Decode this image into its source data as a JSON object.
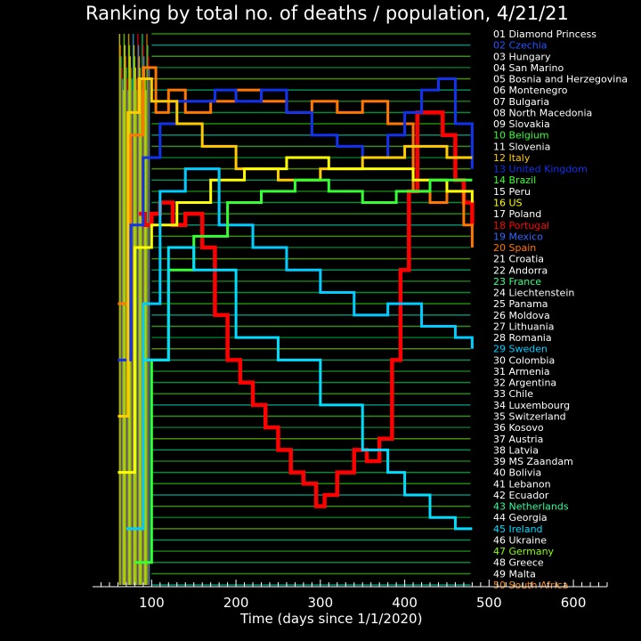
{
  "chart_data": {
    "type": "line",
    "title": "Ranking by total no. of deaths / population, 4/21/21",
    "xlabel": "Time (days since 1/1/2020)",
    "ylabel": "",
    "xlim": [
      30,
      640
    ],
    "ylim": [
      50,
      1
    ],
    "x_ticks": [
      100,
      200,
      300,
      400,
      500,
      600
    ],
    "x_tick_labels": [
      "100",
      "200",
      "300",
      "400",
      "500",
      "600"
    ],
    "ranking": [
      {
        "rank": 1,
        "label": "01 Diamond Princess",
        "color": "#ffffff"
      },
      {
        "rank": 2,
        "label": "02 Czechia",
        "color": "#2255ff"
      },
      {
        "rank": 3,
        "label": "03 Hungary",
        "color": "#ffffff"
      },
      {
        "rank": 4,
        "label": "04 San Marino",
        "color": "#ffffff"
      },
      {
        "rank": 5,
        "label": "05 Bosnia and Herzegovina",
        "color": "#ffffff"
      },
      {
        "rank": 6,
        "label": "06 Montenegro",
        "color": "#ffffff"
      },
      {
        "rank": 7,
        "label": "07 Bulgaria",
        "color": "#ffffff"
      },
      {
        "rank": 8,
        "label": "08 North Macedonia",
        "color": "#ffffff"
      },
      {
        "rank": 9,
        "label": "09 Slovakia",
        "color": "#ffffff"
      },
      {
        "rank": 10,
        "label": "10 Belgium",
        "color": "#33ff33"
      },
      {
        "rank": 11,
        "label": "11 Slovenia",
        "color": "#ffffff"
      },
      {
        "rank": 12,
        "label": "12 Italy",
        "color": "#ffcc00"
      },
      {
        "rank": 13,
        "label": "13 United Kingdom",
        "color": "#1133ee"
      },
      {
        "rank": 14,
        "label": "14 Brazil",
        "color": "#33ff33"
      },
      {
        "rank": 15,
        "label": "15 Peru",
        "color": "#ffffff"
      },
      {
        "rank": 16,
        "label": "16 US",
        "color": "#ffff00"
      },
      {
        "rank": 17,
        "label": "17 Poland",
        "color": "#ffffff"
      },
      {
        "rank": 18,
        "label": "18 Portugal",
        "color": "#ff0000"
      },
      {
        "rank": 19,
        "label": "19 Mexico",
        "color": "#3366ff"
      },
      {
        "rank": 20,
        "label": "20 Spain",
        "color": "#ff7700"
      },
      {
        "rank": 21,
        "label": "21 Croatia",
        "color": "#ffffff"
      },
      {
        "rank": 22,
        "label": "22 Andorra",
        "color": "#ffffff"
      },
      {
        "rank": 23,
        "label": "23 France",
        "color": "#33ff88"
      },
      {
        "rank": 24,
        "label": "24 Liechtenstein",
        "color": "#ffffff"
      },
      {
        "rank": 25,
        "label": "25 Panama",
        "color": "#ffffff"
      },
      {
        "rank": 26,
        "label": "26 Moldova",
        "color": "#ffffff"
      },
      {
        "rank": 27,
        "label": "27 Lithuania",
        "color": "#ffffff"
      },
      {
        "rank": 28,
        "label": "28 Romania",
        "color": "#ffffff"
      },
      {
        "rank": 29,
        "label": "29 Sweden",
        "color": "#00ccff"
      },
      {
        "rank": 30,
        "label": "30 Colombia",
        "color": "#ffffff"
      },
      {
        "rank": 31,
        "label": "31 Armenia",
        "color": "#ffffff"
      },
      {
        "rank": 32,
        "label": "32 Argentina",
        "color": "#ffffff"
      },
      {
        "rank": 33,
        "label": "33 Chile",
        "color": "#ffffff"
      },
      {
        "rank": 34,
        "label": "34 Luxembourg",
        "color": "#ffffff"
      },
      {
        "rank": 35,
        "label": "35 Switzerland",
        "color": "#ffffff"
      },
      {
        "rank": 36,
        "label": "36 Kosovo",
        "color": "#ffffff"
      },
      {
        "rank": 37,
        "label": "37 Austria",
        "color": "#ffffff"
      },
      {
        "rank": 38,
        "label": "38 Latvia",
        "color": "#ffffff"
      },
      {
        "rank": 39,
        "label": "39 MS Zaandam",
        "color": "#ffffff"
      },
      {
        "rank": 40,
        "label": "40 Bolivia",
        "color": "#ffffff"
      },
      {
        "rank": 41,
        "label": "41 Lebanon",
        "color": "#ffffff"
      },
      {
        "rank": 42,
        "label": "42 Ecuador",
        "color": "#ffffff"
      },
      {
        "rank": 43,
        "label": "43 Netherlands",
        "color": "#33ff99"
      },
      {
        "rank": 44,
        "label": "44 Georgia",
        "color": "#ffffff"
      },
      {
        "rank": 45,
        "label": "45 Ireland",
        "color": "#00ddff"
      },
      {
        "rank": 46,
        "label": "46 Ukraine",
        "color": "#ffffff"
      },
      {
        "rank": 47,
        "label": "47 Germany",
        "color": "#88ff00"
      },
      {
        "rank": 48,
        "label": "48 Greece",
        "color": "#ffffff"
      },
      {
        "rank": 49,
        "label": "49 Malta",
        "color": "#ffffff"
      },
      {
        "rank": 50,
        "label": "50 South Africa",
        "color": "#ff8800"
      }
    ],
    "series": [
      {
        "label_rank": 18,
        "color": "#ff0000",
        "x": [
          85,
          92,
          100,
          110,
          125,
          140,
          160,
          175,
          190,
          205,
          220,
          235,
          250,
          265,
          280,
          295,
          305,
          320,
          340,
          355,
          370,
          385,
          395,
          405,
          415,
          430,
          445,
          460,
          470,
          480
        ],
        "y": [
          17,
          18,
          17,
          16,
          18,
          17,
          20,
          26,
          30,
          32,
          34,
          36,
          38,
          40,
          41,
          43,
          42,
          40,
          38,
          39,
          37,
          30,
          22,
          15,
          8,
          8,
          10,
          14,
          16,
          18
        ]
      },
      {
        "label_rank": 20,
        "color": "#ff7700",
        "x": [
          60,
          75,
          90,
          105,
          120,
          140,
          170,
          200,
          230,
          260,
          290,
          320,
          350,
          380,
          410,
          430,
          450,
          470,
          480
        ],
        "y": [
          25,
          10,
          4,
          8,
          6,
          8,
          7,
          6,
          7,
          8,
          7,
          8,
          7,
          9,
          15,
          16,
          15,
          18,
          20
        ]
      },
      {
        "label_rank": 13,
        "color": "#1133ee",
        "x": [
          60,
          75,
          90,
          110,
          130,
          150,
          175,
          200,
          230,
          260,
          290,
          320,
          350,
          380,
          400,
          420,
          440,
          460,
          480
        ],
        "y": [
          30,
          18,
          12,
          9,
          7,
          7,
          6,
          7,
          6,
          8,
          10,
          11,
          12,
          10,
          8,
          6,
          5,
          9,
          13
        ]
      },
      {
        "label_rank": 12,
        "color": "#ffcc00",
        "x": [
          60,
          72,
          85,
          100,
          130,
          160,
          200,
          250,
          300,
          350,
          400,
          450,
          480
        ],
        "y": [
          35,
          8,
          5,
          7,
          9,
          11,
          13,
          14,
          13,
          12,
          11,
          12,
          12
        ]
      },
      {
        "label_rank": 16,
        "color": "#ffff00",
        "x": [
          60,
          80,
          100,
          130,
          170,
          210,
          260,
          310,
          360,
          410,
          450,
          480
        ],
        "y": [
          40,
          20,
          18,
          16,
          14,
          13,
          12,
          13,
          13,
          14,
          15,
          16
        ]
      },
      {
        "label_rank": 29,
        "color": "#00ccff",
        "x": [
          70,
          90,
          110,
          140,
          180,
          220,
          260,
          300,
          340,
          380,
          420,
          460,
          480
        ],
        "y": [
          45,
          25,
          15,
          13,
          18,
          20,
          22,
          24,
          26,
          25,
          27,
          28,
          29
        ]
      },
      {
        "label_rank": 14,
        "color": "#33ff33",
        "x": [
          80,
          100,
          120,
          150,
          190,
          230,
          270,
          310,
          350,
          390,
          430,
          470,
          480
        ],
        "y": [
          48,
          30,
          22,
          19,
          16,
          15,
          14,
          15,
          16,
          15,
          14,
          14,
          14
        ]
      },
      {
        "label_rank": 45,
        "color": "#00ddff",
        "x": [
          90,
          120,
          150,
          200,
          250,
          300,
          350,
          380,
          400,
          430,
          460,
          480
        ],
        "y": [
          30,
          20,
          22,
          28,
          30,
          34,
          38,
          40,
          42,
          44,
          45,
          45
        ]
      }
    ]
  }
}
